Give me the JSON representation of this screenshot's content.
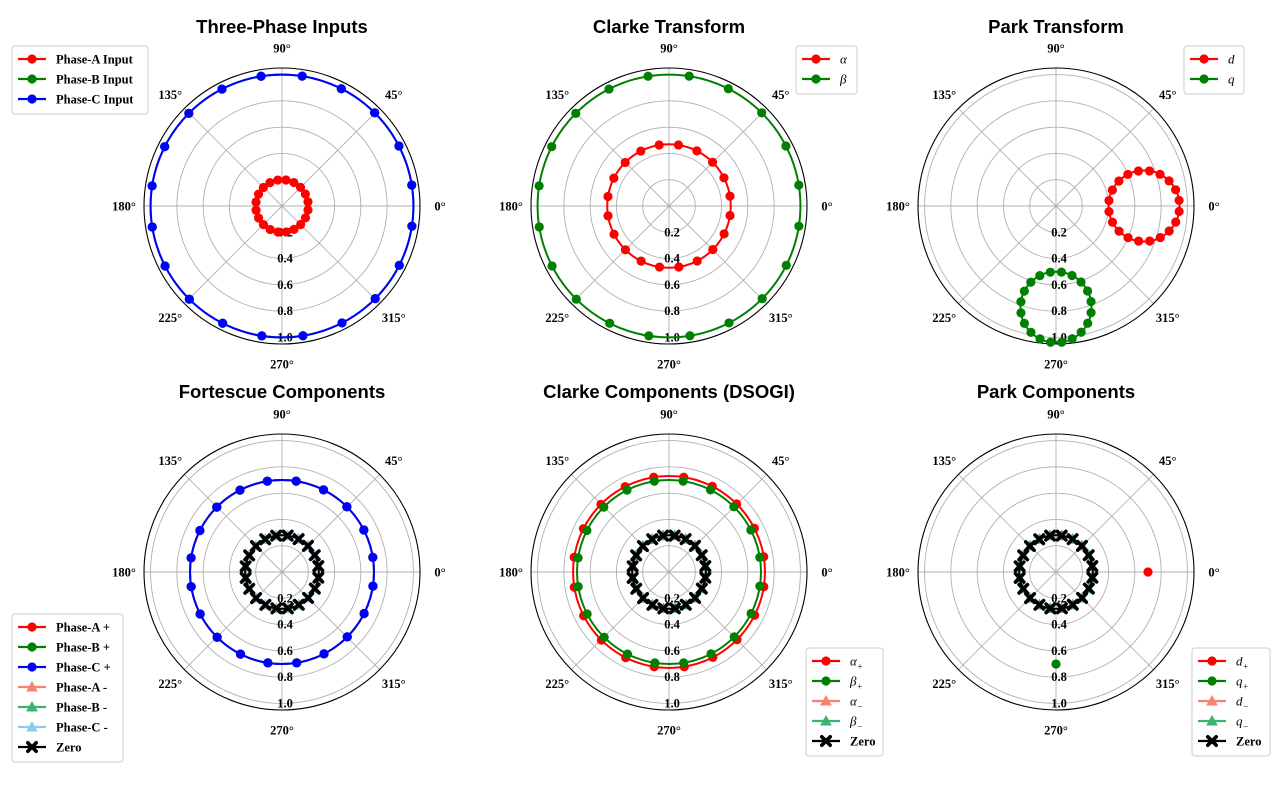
{
  "colors": {
    "red": "#ff0000",
    "green": "#008000",
    "blue": "#0000ff",
    "salmon": "#fa8072",
    "mediumseagreen": "#3cb371",
    "skyblue": "#87ceeb",
    "black": "#000000",
    "grid": "#b0b0b0"
  },
  "angle_labels": [
    "0°",
    "45°",
    "90°",
    "135°",
    "180°",
    "225°",
    "270°",
    "315°"
  ],
  "radial_labels": [
    "0.2",
    "0.4",
    "0.6",
    "0.8",
    "1.0"
  ],
  "chart_data": [
    {
      "type": "polar-line",
      "title": "Three-Phase Inputs",
      "rlim": [
        0,
        1.05
      ],
      "grid": true,
      "legend": "upper-left",
      "series": [
        {
          "name": "Phase-A Input",
          "color": "red",
          "marker": "circle",
          "trace": "circle",
          "center_r": 0,
          "center_deg": 0,
          "radius": 0.2,
          "markers": 20
        },
        {
          "name": "Phase-B Input",
          "color": "green",
          "marker": "circle",
          "trace": "circle",
          "center_r": 0,
          "center_deg": 0,
          "radius": 1.0,
          "markers": 20
        },
        {
          "name": "Phase-C Input",
          "color": "blue",
          "marker": "circle",
          "trace": "circle",
          "center_r": 0,
          "center_deg": 0,
          "radius": 1.0,
          "markers": 20
        }
      ]
    },
    {
      "type": "polar-line",
      "title": "Clarke Transform",
      "rlim": [
        0,
        1.05
      ],
      "grid": true,
      "legend": "upper-right",
      "series": [
        {
          "name": "α",
          "name_style": "math",
          "color": "red",
          "marker": "circle",
          "trace": "circle",
          "center_r": 0,
          "center_deg": 0,
          "radius": 0.47,
          "markers": 20
        },
        {
          "name": "β",
          "name_style": "math",
          "color": "green",
          "marker": "circle",
          "trace": "circle",
          "center_r": 0,
          "center_deg": 0,
          "radius": 1.0,
          "markers": 20
        }
      ]
    },
    {
      "type": "polar-line",
      "title": "Park Transform",
      "rlim": [
        0,
        1.05
      ],
      "grid": true,
      "legend": "upper-right",
      "series": [
        {
          "name": "d",
          "name_style": "math",
          "color": "red",
          "marker": "circle",
          "trace": "circle",
          "center_r": 0.67,
          "center_deg": 0,
          "radius": 0.27,
          "markers": 20
        },
        {
          "name": "q",
          "name_style": "math",
          "color": "green",
          "marker": "circle",
          "trace": "circle",
          "center_r": 0.77,
          "center_deg": 270,
          "radius": 0.27,
          "markers": 20
        }
      ]
    },
    {
      "type": "polar-line",
      "title": "Fortescue Components",
      "rlim": [
        0,
        1.05
      ],
      "grid": true,
      "legend": "lower-left",
      "series": [
        {
          "name": "Phase-A +",
          "color": "red",
          "marker": "circle",
          "trace": "circle",
          "center_r": 0,
          "center_deg": 0,
          "radius": 0.7,
          "markers": 20
        },
        {
          "name": "Phase-B +",
          "color": "green",
          "marker": "circle",
          "trace": "circle",
          "center_r": 0,
          "center_deg": 0,
          "radius": 0.7,
          "markers": 20
        },
        {
          "name": "Phase-C +",
          "color": "blue",
          "marker": "circle",
          "trace": "circle",
          "center_r": 0,
          "center_deg": 0,
          "radius": 0.7,
          "markers": 20
        },
        {
          "name": "Phase-A -",
          "color": "salmon",
          "marker": "triangle",
          "trace": "circle",
          "center_r": 0,
          "center_deg": 0,
          "radius": 0.28,
          "markers": 20
        },
        {
          "name": "Phase-B -",
          "color": "mediumseagreen",
          "marker": "triangle",
          "trace": "circle",
          "center_r": 0,
          "center_deg": 0,
          "radius": 0.28,
          "markers": 20
        },
        {
          "name": "Phase-C -",
          "color": "skyblue",
          "marker": "triangle",
          "trace": "circle",
          "center_r": 0,
          "center_deg": 0,
          "radius": 0.28,
          "markers": 20
        },
        {
          "name": "Zero",
          "color": "black",
          "marker": "x",
          "trace": "circle",
          "center_r": 0,
          "center_deg": 0,
          "radius": 0.28,
          "markers": 20
        }
      ]
    },
    {
      "type": "polar-line",
      "title": "Clarke Components (DSOGI)",
      "rlim": [
        0,
        1.05
      ],
      "grid": true,
      "legend": "lower-right",
      "series": [
        {
          "name": "α",
          "sub": "+",
          "name_style": "math",
          "color": "red",
          "marker": "circle",
          "trace": "circle",
          "center_r": 0,
          "center_deg": 0,
          "radius": 0.73,
          "markers": 20
        },
        {
          "name": "β",
          "sub": "+",
          "name_style": "math",
          "color": "green",
          "marker": "circle",
          "trace": "circle",
          "center_r": 0,
          "center_deg": 0,
          "radius": 0.7,
          "markers": 20
        },
        {
          "name": "α",
          "sub": "−",
          "name_style": "math",
          "color": "salmon",
          "marker": "triangle",
          "trace": "circle",
          "center_r": 0,
          "center_deg": 0,
          "radius": 0.28,
          "markers": 20
        },
        {
          "name": "β",
          "sub": "−",
          "name_style": "math",
          "color": "mediumseagreen",
          "marker": "triangle",
          "trace": "circle",
          "center_r": 0,
          "center_deg": 0,
          "radius": 0.28,
          "markers": 20
        },
        {
          "name": "Zero",
          "color": "black",
          "marker": "x",
          "trace": "circle",
          "center_r": 0,
          "center_deg": 0,
          "radius": 0.28,
          "markers": 20
        }
      ]
    },
    {
      "type": "polar-line",
      "title": "Park Components",
      "rlim": [
        0,
        1.05
      ],
      "grid": true,
      "legend": "lower-right",
      "series": [
        {
          "name": "d",
          "sub": "+",
          "name_style": "math",
          "color": "red",
          "marker": "circle",
          "trace": "point",
          "center_r": 0.7,
          "center_deg": 0,
          "radius": 0,
          "markers": 1
        },
        {
          "name": "q",
          "sub": "+",
          "name_style": "math",
          "color": "green",
          "marker": "circle",
          "trace": "point",
          "center_r": 0.7,
          "center_deg": 270,
          "radius": 0,
          "markers": 1
        },
        {
          "name": "d",
          "sub": "−",
          "name_style": "math",
          "color": "salmon",
          "marker": "triangle",
          "trace": "circle",
          "center_r": 0,
          "center_deg": 0,
          "radius": 0.28,
          "markers": 20
        },
        {
          "name": "q",
          "sub": "−",
          "name_style": "math",
          "color": "mediumseagreen",
          "marker": "triangle",
          "trace": "circle",
          "center_r": 0,
          "center_deg": 0,
          "radius": 0.28,
          "markers": 20
        },
        {
          "name": "Zero",
          "color": "black",
          "marker": "x",
          "trace": "circle",
          "center_r": 0,
          "center_deg": 0,
          "radius": 0.28,
          "markers": 20
        }
      ]
    }
  ]
}
